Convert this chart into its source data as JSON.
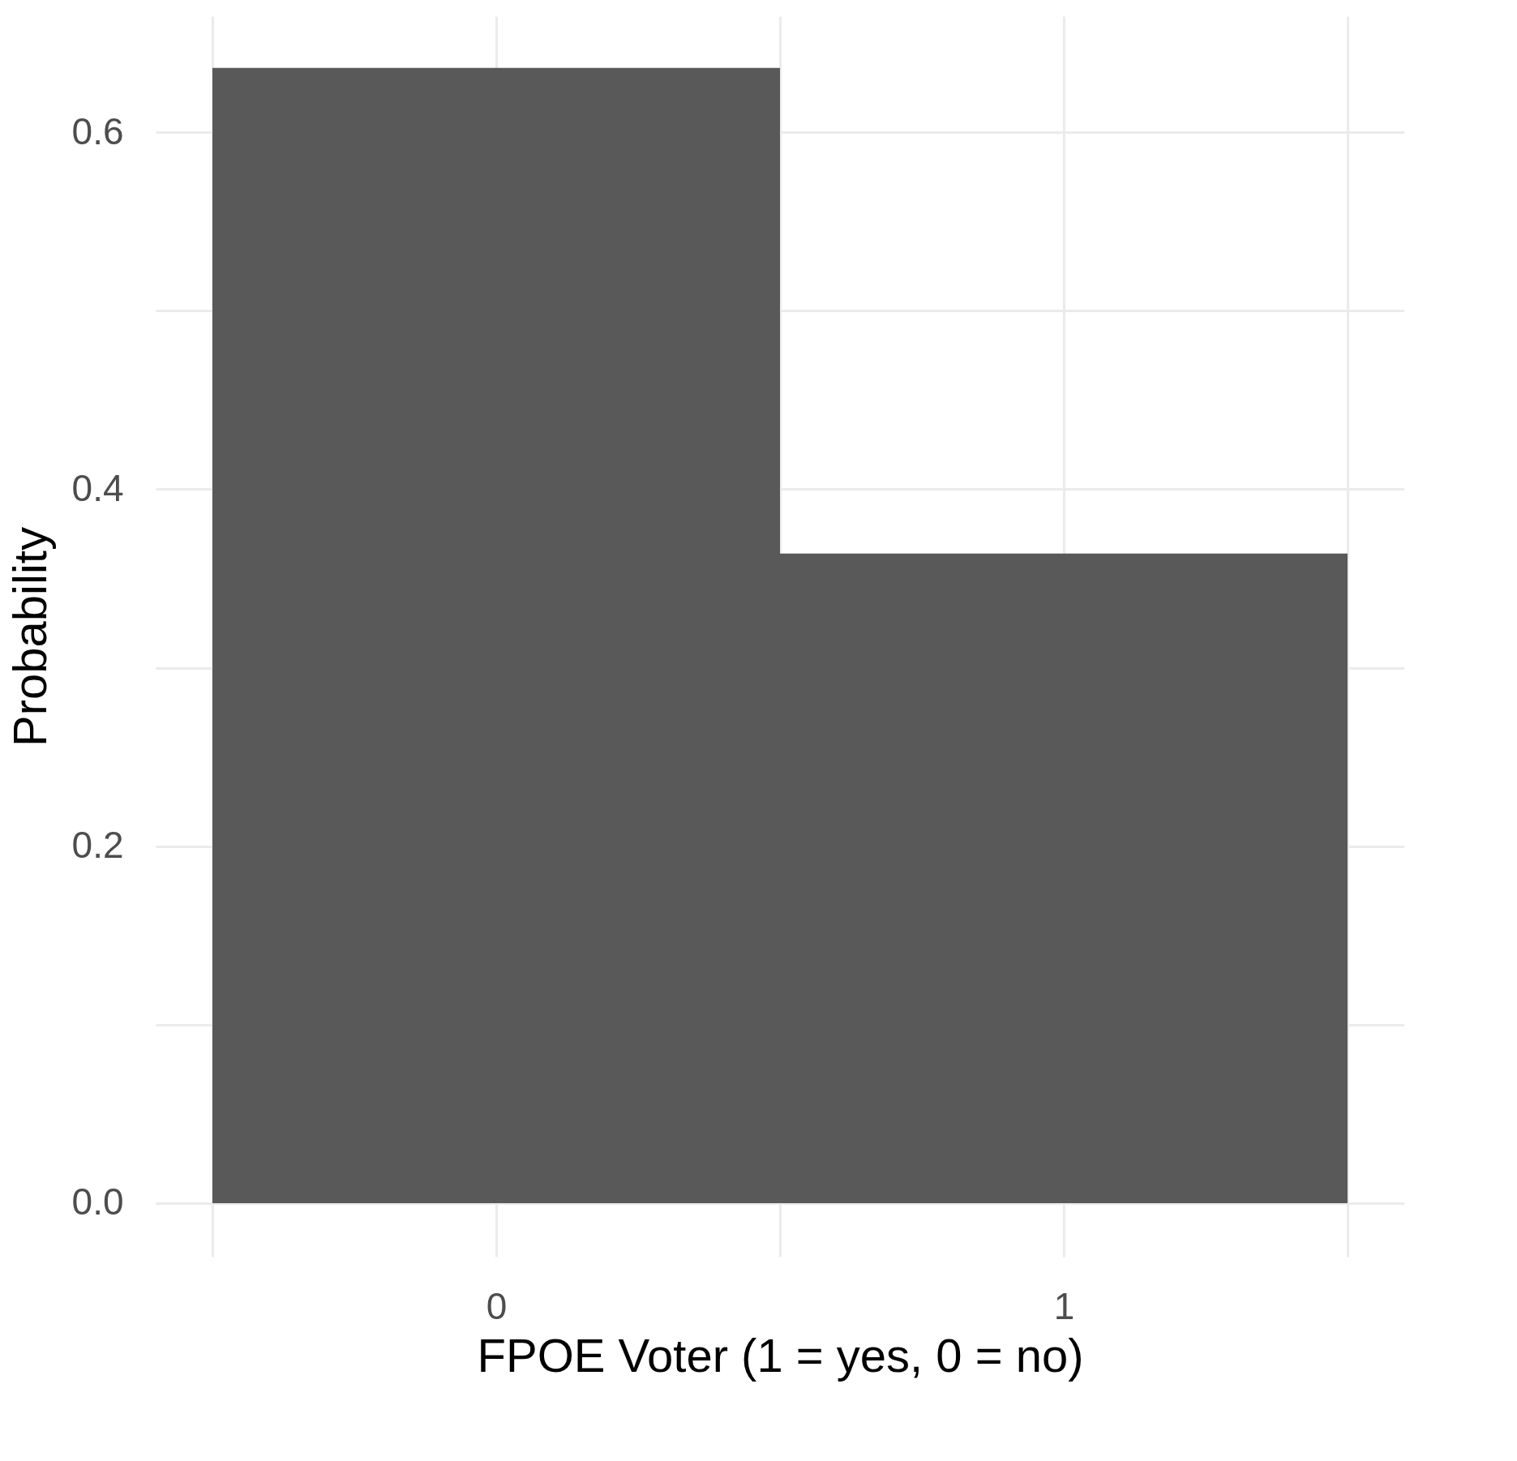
{
  "chart_data": {
    "type": "histogram",
    "xlabel": "FPOE Voter (1 = yes, 0 = no)",
    "ylabel": "Probability",
    "bins": [
      -0.5,
      0.5,
      1.5
    ],
    "values": [
      0.636,
      0.364
    ],
    "color": "#595959",
    "xlim": [
      -0.6,
      1.6
    ],
    "ylim": [
      -0.03,
      0.665
    ],
    "xticks": [
      {
        "value": -0.5,
        "label": null
      },
      0,
      {
        "value": 0.5,
        "label": null
      },
      1,
      {
        "value": 1.5,
        "label": null
      }
    ],
    "yticks": [
      {
        "value": 0,
        "label": "0.0"
      },
      {
        "value": 0.1,
        "label": null
      },
      0.2,
      {
        "value": 0.3,
        "label": null
      },
      0.4,
      {
        "value": 0.5,
        "label": null
      },
      0.6
    ],
    "grid": true
  }
}
